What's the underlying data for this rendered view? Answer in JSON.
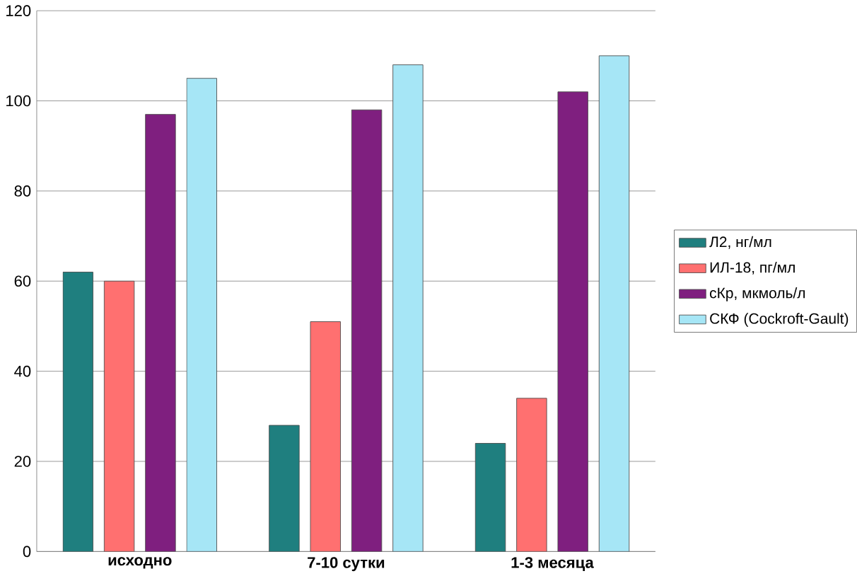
{
  "chart_data": {
    "type": "bar",
    "categories": [
      "**исходно**",
      "**7-10 сутки**",
      "**1-3 месяца**"
    ],
    "series": [
      {
        "name": "Л2, нг/мл",
        "color": "#1f7f7f",
        "values": [
          62,
          28,
          24
        ]
      },
      {
        "name": "ИЛ-18, пг/мл",
        "color": "#ff7070",
        "values": [
          60,
          51,
          34
        ]
      },
      {
        "name": "сКр, мкмоль/л",
        "color": "#7f1f7f",
        "values": [
          97,
          98,
          102
        ]
      },
      {
        "name": "СКФ (Cockroft-Gault)",
        "color": "#a6e6f6",
        "values": [
          105,
          108,
          110
        ]
      }
    ],
    "ylim": [
      0,
      120
    ],
    "yticks": [
      0,
      20,
      40,
      60,
      80,
      100,
      120
    ],
    "grid": "y",
    "legend": "right"
  }
}
